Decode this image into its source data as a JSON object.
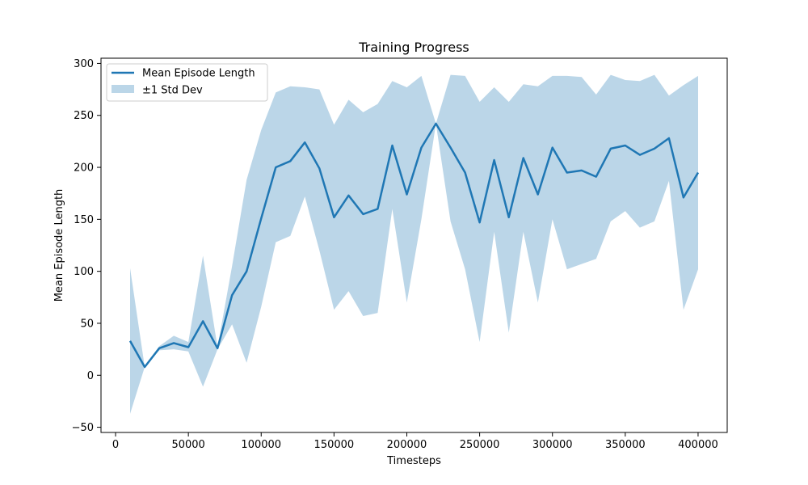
{
  "chart_data": {
    "type": "line",
    "title": "Training Progress",
    "xlabel": "Timesteps",
    "ylabel": "Mean Episode Length",
    "xlim": [
      -10000,
      420000
    ],
    "ylim": [
      -55,
      305
    ],
    "xticks": [
      0,
      50000,
      100000,
      150000,
      200000,
      250000,
      300000,
      350000,
      400000
    ],
    "xtick_labels": [
      "0",
      "50000",
      "100000",
      "150000",
      "200000",
      "250000",
      "300000",
      "350000",
      "400000"
    ],
    "yticks": [
      -50,
      0,
      50,
      100,
      150,
      200,
      250,
      300
    ],
    "ytick_labels": [
      "−50",
      "0",
      "50",
      "100",
      "150",
      "200",
      "250",
      "300"
    ],
    "grid": false,
    "legend_position": "top-left",
    "x": [
      10000,
      20000,
      30000,
      40000,
      50000,
      60000,
      70000,
      80000,
      90000,
      100000,
      110000,
      120000,
      130000,
      140000,
      150000,
      160000,
      170000,
      180000,
      190000,
      200000,
      210000,
      220000,
      230000,
      240000,
      250000,
      260000,
      270000,
      280000,
      290000,
      300000,
      310000,
      320000,
      330000,
      340000,
      350000,
      360000,
      370000,
      380000,
      390000,
      400000
    ],
    "series": [
      {
        "name": "Mean Episode Length",
        "kind": "line",
        "color": "#1f77b4",
        "values": [
          33,
          8,
          26,
          31,
          27,
          52,
          26,
          77,
          100,
          151,
          200,
          206,
          224,
          199,
          152,
          173,
          155,
          160,
          221,
          174,
          219,
          242,
          219,
          195,
          147,
          207,
          152,
          209,
          174,
          219,
          195,
          197,
          191,
          218,
          221,
          212,
          218,
          228,
          171,
          195
        ]
      },
      {
        "name": "±1 Std Dev",
        "kind": "band",
        "color": "#1f77b4",
        "opacity": 0.3,
        "upper": [
          103,
          8,
          28,
          38,
          32,
          115,
          27,
          105,
          188,
          236,
          272,
          278,
          277,
          275,
          241,
          265,
          253,
          261,
          283,
          277,
          288,
          242,
          289,
          288,
          263,
          277,
          263,
          280,
          278,
          288,
          288,
          287,
          270,
          289,
          284,
          283,
          289,
          269,
          279,
          288
        ],
        "lower": [
          -37,
          8,
          24,
          25,
          23,
          -11,
          25,
          49,
          12,
          66,
          128,
          134,
          172,
          120,
          63,
          81,
          57,
          60,
          160,
          70,
          150,
          242,
          148,
          102,
          32,
          138,
          41,
          138,
          70,
          150,
          102,
          107,
          112,
          148,
          158,
          142,
          148,
          187,
          63,
          102
        ]
      }
    ]
  }
}
